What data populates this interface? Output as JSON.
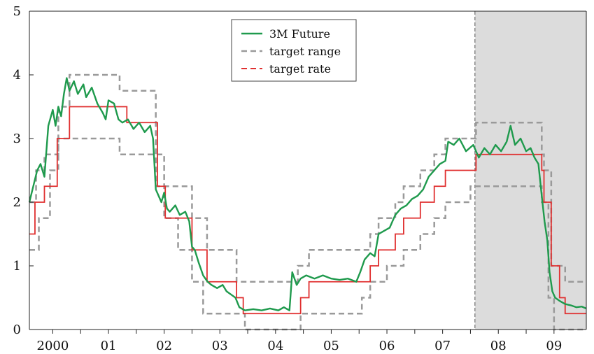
{
  "chart_data": {
    "type": "line",
    "title": "",
    "xlabel": "",
    "ylabel": "",
    "xlim": [
      1999.58,
      2009.58
    ],
    "ylim": [
      0,
      5
    ],
    "yticks": [
      0,
      1,
      2,
      3,
      4,
      5
    ],
    "x_tick_labels": [
      {
        "label": "2000",
        "x": 2000.0
      },
      {
        "label": "01",
        "x": 2001.0
      },
      {
        "label": "02",
        "x": 2002.0
      },
      {
        "label": "03",
        "x": 2003.0
      },
      {
        "label": "04",
        "x": 2004.0
      },
      {
        "label": "05",
        "x": 2005.0
      },
      {
        "label": "06",
        "x": 2006.0
      },
      {
        "label": "07",
        "x": 2007.0
      },
      {
        "label": "08",
        "x": 2008.0
      },
      {
        "label": "09",
        "x": 2009.0
      }
    ],
    "x_minor_ticks": [
      2000.0,
      2000.5,
      2001.0,
      2001.5,
      2002.0,
      2002.5,
      2003.0,
      2003.5,
      2004.0,
      2004.5,
      2005.0,
      2005.5,
      2006.0,
      2006.5,
      2007.0,
      2007.5,
      2008.0,
      2008.5,
      2009.0
    ],
    "shaded_region": {
      "x_start": 2007.58,
      "x_end": 2009.58,
      "color": "#dcdcdc"
    },
    "legend": {
      "position": "top-center",
      "entries": [
        "3M Future",
        "target range",
        "target rate"
      ]
    },
    "colors": {
      "future": "#1f9a4d",
      "range": "#9a9a9a",
      "rate": "#e03030"
    },
    "series": [
      {
        "name": "target rate",
        "style": "step",
        "points": [
          [
            1999.58,
            1.5
          ],
          [
            1999.68,
            2.0
          ],
          [
            1999.85,
            2.25
          ],
          [
            2000.08,
            3.0
          ],
          [
            2000.3,
            3.5
          ],
          [
            2001.0,
            3.5
          ],
          [
            2001.33,
            3.25
          ],
          [
            2001.75,
            3.25
          ],
          [
            2001.88,
            2.25
          ],
          [
            2002.02,
            1.75
          ],
          [
            2002.33,
            1.75
          ],
          [
            2002.5,
            1.25
          ],
          [
            2002.7,
            1.25
          ],
          [
            2002.77,
            0.75
          ],
          [
            2003.12,
            0.75
          ],
          [
            2003.3,
            0.5
          ],
          [
            2003.42,
            0.25
          ],
          [
            2004.28,
            0.25
          ],
          [
            2004.45,
            0.5
          ],
          [
            2004.6,
            0.75
          ],
          [
            2005.55,
            0.75
          ],
          [
            2005.7,
            1.0
          ],
          [
            2005.85,
            1.25
          ],
          [
            2006.15,
            1.5
          ],
          [
            2006.3,
            1.75
          ],
          [
            2006.6,
            2.0
          ],
          [
            2006.85,
            2.25
          ],
          [
            2007.05,
            2.5
          ],
          [
            2007.45,
            2.5
          ],
          [
            2007.6,
            2.75
          ],
          [
            2008.6,
            2.75
          ],
          [
            2008.78,
            2.5
          ],
          [
            2008.82,
            2.0
          ],
          [
            2008.95,
            1.0
          ],
          [
            2009.1,
            0.5
          ],
          [
            2009.2,
            0.25
          ],
          [
            2009.58,
            0.25
          ]
        ]
      },
      {
        "name": "target range",
        "style": "step",
        "lines": [
          [
            [
              1999.58,
              2.0
            ],
            [
              1999.7,
              2.5
            ],
            [
              1999.85,
              2.75
            ],
            [
              2000.1,
              3.5
            ],
            [
              2000.3,
              4.0
            ],
            [
              2001.1,
              4.0
            ],
            [
              2001.2,
              3.75
            ],
            [
              2001.75,
              3.75
            ],
            [
              2001.85,
              2.25
            ],
            [
              2002.05,
              2.25
            ],
            [
              2002.33,
              2.25
            ],
            [
              2002.5,
              1.75
            ],
            [
              2002.7,
              1.75
            ],
            [
              2002.77,
              1.25
            ],
            [
              2003.12,
              1.25
            ],
            [
              2003.3,
              0.75
            ],
            [
              2004.28,
              0.75
            ],
            [
              2004.4,
              1.0
            ],
            [
              2004.6,
              1.25
            ],
            [
              2005.55,
              1.25
            ],
            [
              2005.7,
              1.5
            ],
            [
              2005.85,
              1.75
            ],
            [
              2006.15,
              2.0
            ],
            [
              2006.3,
              2.25
            ],
            [
              2006.6,
              2.5
            ],
            [
              2006.85,
              2.75
            ],
            [
              2007.05,
              3.0
            ],
            [
              2007.6,
              3.25
            ],
            [
              2008.6,
              3.25
            ],
            [
              2008.78,
              2.75
            ],
            [
              2008.82,
              2.5
            ],
            [
              2008.95,
              1.0
            ],
            [
              2009.1,
              1.0
            ],
            [
              2009.2,
              0.75
            ],
            [
              2009.58,
              0.75
            ]
          ],
          [
            [
              1999.58,
              1.25
            ],
            [
              1999.75,
              1.75
            ],
            [
              1999.95,
              2.5
            ],
            [
              2000.1,
              3.0
            ],
            [
              2000.45,
              3.0
            ],
            [
              2001.0,
              3.0
            ],
            [
              2001.2,
              2.75
            ],
            [
              2001.8,
              2.75
            ],
            [
              2002.0,
              1.75
            ],
            [
              2002.25,
              1.25
            ],
            [
              2002.5,
              0.75
            ],
            [
              2002.7,
              0.25
            ],
            [
              2003.25,
              0.25
            ],
            [
              2003.45,
              0.0
            ],
            [
              2004.3,
              0.0
            ],
            [
              2004.45,
              0.25
            ],
            [
              2004.6,
              0.25
            ],
            [
              2005.0,
              0.25
            ],
            [
              2005.55,
              0.5
            ],
            [
              2005.7,
              0.75
            ],
            [
              2006.0,
              1.0
            ],
            [
              2006.3,
              1.25
            ],
            [
              2006.6,
              1.5
            ],
            [
              2006.85,
              1.75
            ],
            [
              2007.05,
              2.0
            ],
            [
              2007.5,
              2.25
            ],
            [
              2008.55,
              2.25
            ],
            [
              2008.78,
              2.0
            ],
            [
              2008.9,
              0.5
            ],
            [
              2009.0,
              0.0
            ],
            [
              2009.58,
              0.0
            ]
          ]
        ]
      },
      {
        "name": "3M Future",
        "style": "line",
        "points": [
          [
            1999.58,
            2.0
          ],
          [
            1999.65,
            2.25
          ],
          [
            1999.72,
            2.5
          ],
          [
            1999.78,
            2.6
          ],
          [
            1999.85,
            2.4
          ],
          [
            1999.92,
            3.2
          ],
          [
            2000.0,
            3.45
          ],
          [
            2000.05,
            3.2
          ],
          [
            2000.1,
            3.5
          ],
          [
            2000.15,
            3.35
          ],
          [
            2000.2,
            3.7
          ],
          [
            2000.25,
            3.95
          ],
          [
            2000.3,
            3.75
          ],
          [
            2000.38,
            3.9
          ],
          [
            2000.45,
            3.7
          ],
          [
            2000.55,
            3.85
          ],
          [
            2000.6,
            3.65
          ],
          [
            2000.7,
            3.8
          ],
          [
            2000.8,
            3.55
          ],
          [
            2000.9,
            3.4
          ],
          [
            2000.95,
            3.3
          ],
          [
            2001.0,
            3.6
          ],
          [
            2001.1,
            3.55
          ],
          [
            2001.18,
            3.3
          ],
          [
            2001.25,
            3.25
          ],
          [
            2001.35,
            3.3
          ],
          [
            2001.45,
            3.15
          ],
          [
            2001.55,
            3.25
          ],
          [
            2001.65,
            3.1
          ],
          [
            2001.75,
            3.2
          ],
          [
            2001.8,
            3.0
          ],
          [
            2001.85,
            2.2
          ],
          [
            2001.9,
            2.1
          ],
          [
            2001.95,
            2.0
          ],
          [
            2002.0,
            2.15
          ],
          [
            2002.05,
            1.9
          ],
          [
            2002.1,
            1.85
          ],
          [
            2002.2,
            1.95
          ],
          [
            2002.28,
            1.8
          ],
          [
            2002.38,
            1.85
          ],
          [
            2002.45,
            1.7
          ],
          [
            2002.5,
            1.3
          ],
          [
            2002.55,
            1.25
          ],
          [
            2002.62,
            1.05
          ],
          [
            2002.7,
            0.85
          ],
          [
            2002.78,
            0.75
          ],
          [
            2002.85,
            0.7
          ],
          [
            2002.95,
            0.65
          ],
          [
            2003.05,
            0.7
          ],
          [
            2003.12,
            0.6
          ],
          [
            2003.2,
            0.55
          ],
          [
            2003.28,
            0.5
          ],
          [
            2003.35,
            0.35
          ],
          [
            2003.45,
            0.3
          ],
          [
            2003.6,
            0.32
          ],
          [
            2003.75,
            0.3
          ],
          [
            2003.9,
            0.33
          ],
          [
            2004.05,
            0.3
          ],
          [
            2004.15,
            0.35
          ],
          [
            2004.25,
            0.3
          ],
          [
            2004.3,
            0.9
          ],
          [
            2004.38,
            0.7
          ],
          [
            2004.45,
            0.8
          ],
          [
            2004.55,
            0.85
          ],
          [
            2004.7,
            0.8
          ],
          [
            2004.85,
            0.85
          ],
          [
            2005.0,
            0.8
          ],
          [
            2005.15,
            0.78
          ],
          [
            2005.3,
            0.8
          ],
          [
            2005.45,
            0.75
          ],
          [
            2005.52,
            0.9
          ],
          [
            2005.6,
            1.1
          ],
          [
            2005.7,
            1.2
          ],
          [
            2005.78,
            1.15
          ],
          [
            2005.85,
            1.5
          ],
          [
            2005.95,
            1.55
          ],
          [
            2006.05,
            1.6
          ],
          [
            2006.15,
            1.8
          ],
          [
            2006.25,
            1.9
          ],
          [
            2006.35,
            1.95
          ],
          [
            2006.45,
            2.05
          ],
          [
            2006.55,
            2.1
          ],
          [
            2006.65,
            2.2
          ],
          [
            2006.75,
            2.4
          ],
          [
            2006.85,
            2.5
          ],
          [
            2006.95,
            2.6
          ],
          [
            2007.05,
            2.65
          ],
          [
            2007.1,
            2.95
          ],
          [
            2007.2,
            2.9
          ],
          [
            2007.3,
            3.0
          ],
          [
            2007.42,
            2.8
          ],
          [
            2007.55,
            2.9
          ],
          [
            2007.65,
            2.7
          ],
          [
            2007.75,
            2.85
          ],
          [
            2007.85,
            2.75
          ],
          [
            2007.95,
            2.9
          ],
          [
            2008.05,
            2.8
          ],
          [
            2008.15,
            2.95
          ],
          [
            2008.22,
            3.2
          ],
          [
            2008.3,
            2.9
          ],
          [
            2008.4,
            3.0
          ],
          [
            2008.5,
            2.8
          ],
          [
            2008.58,
            2.85
          ],
          [
            2008.65,
            2.7
          ],
          [
            2008.72,
            2.6
          ],
          [
            2008.78,
            2.1
          ],
          [
            2008.83,
            1.7
          ],
          [
            2008.88,
            1.4
          ],
          [
            2008.92,
            0.9
          ],
          [
            2008.97,
            0.6
          ],
          [
            2009.02,
            0.5
          ],
          [
            2009.1,
            0.45
          ],
          [
            2009.2,
            0.4
          ],
          [
            2009.3,
            0.38
          ],
          [
            2009.4,
            0.35
          ],
          [
            2009.5,
            0.36
          ],
          [
            2009.58,
            0.33
          ]
        ]
      }
    ]
  }
}
